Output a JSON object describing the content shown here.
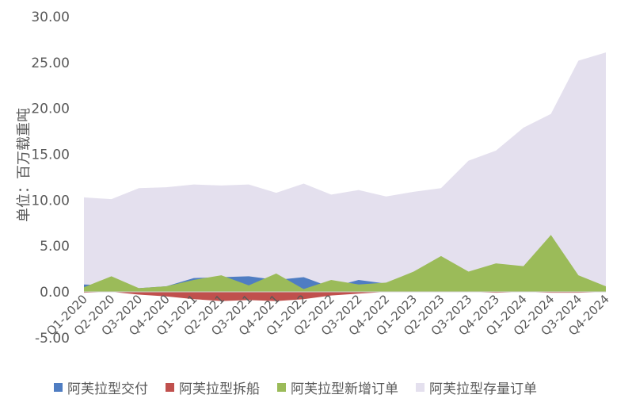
{
  "chart_data": {
    "type": "area",
    "ylabel": "单位：百万载重吨",
    "ylim": [
      -5,
      30
    ],
    "yticks": [
      "-5.00",
      "0.00",
      "5.00",
      "10.00",
      "15.00",
      "20.00",
      "25.00",
      "30.00"
    ],
    "categories": [
      "Q1-2020",
      "Q2-2020",
      "Q3-2020",
      "Q4-2020",
      "Q1-2021",
      "Q2-2021",
      "Q3-2021",
      "Q4-2021",
      "Q1-2022",
      "Q2-2022",
      "Q3-2022",
      "Q4-2022",
      "Q1-2023",
      "Q2-2023",
      "Q3-2023",
      "Q4-2023",
      "Q1-2024",
      "Q2-2024",
      "Q3-2024",
      "Q4-2024"
    ],
    "legend_position": "bottom",
    "grid": false,
    "series": [
      {
        "name": "阿芙拉型存量订单",
        "color": "#E4E0EE",
        "values": [
          10.3,
          10.1,
          11.3,
          11.4,
          11.7,
          11.6,
          11.7,
          10.8,
          11.8,
          10.6,
          11.1,
          10.4,
          10.9,
          11.3,
          14.3,
          15.4,
          17.9,
          19.4,
          25.2,
          26.1
        ]
      },
      {
        "name": "阿芙拉型交付",
        "color": "#4F7DC2",
        "values": [
          0.8,
          0.7,
          0.4,
          0.6,
          1.5,
          1.6,
          1.7,
          1.3,
          1.6,
          0.5,
          1.3,
          0.9,
          0.9,
          0.8,
          0.6,
          0.7,
          0.6,
          0.6,
          0.6,
          0.5
        ]
      },
      {
        "name": "阿芙拉型新增订单",
        "color": "#9BBB59",
        "values": [
          0.5,
          1.7,
          0.4,
          0.6,
          1.3,
          1.8,
          0.7,
          2.0,
          0.3,
          1.3,
          0.8,
          1.0,
          2.2,
          3.9,
          2.2,
          3.1,
          2.8,
          6.2,
          1.8,
          0.6
        ]
      },
      {
        "name": "阿芙拉型拆船",
        "color": "#C0504D",
        "values": [
          -0.1,
          0.0,
          -0.3,
          -0.5,
          -0.8,
          -1.0,
          -0.9,
          -1.0,
          -0.8,
          -0.4,
          -0.2,
          0.0,
          0.0,
          0.0,
          0.0,
          -0.1,
          0.0,
          -0.1,
          -0.1,
          0.0
        ]
      }
    ],
    "legend_order": [
      "阿芙拉型交付",
      "阿芙拉型拆船",
      "阿芙拉型新增订单",
      "阿芙拉型存量订单"
    ]
  }
}
